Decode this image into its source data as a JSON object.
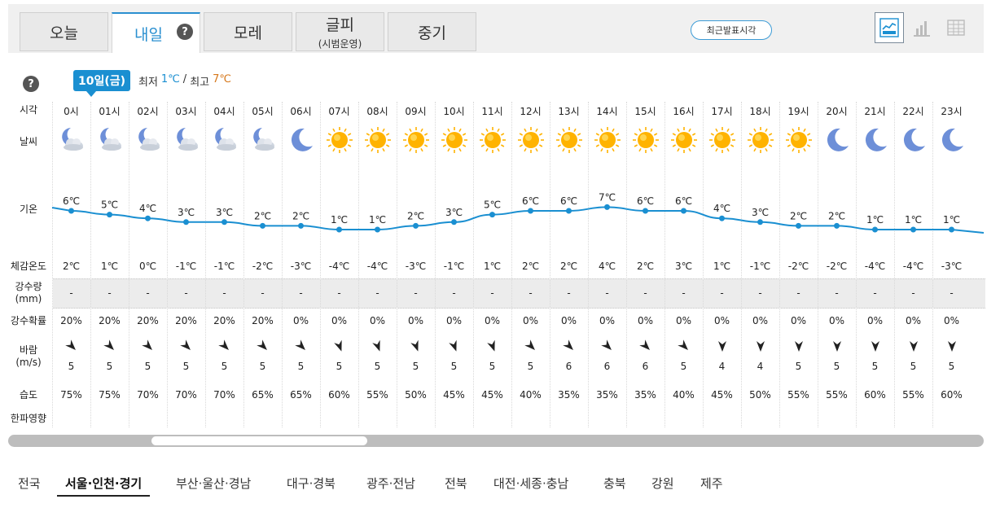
{
  "tabs": [
    {
      "label": "오늘",
      "sub": ""
    },
    {
      "label": "내일",
      "sub": ""
    },
    {
      "label": "모레",
      "sub": ""
    },
    {
      "label": "글피",
      "sub": "(시범운영)"
    },
    {
      "label": "중기",
      "sub": ""
    }
  ],
  "help_glyph": "?",
  "latest_button": "최근발표시각",
  "date_badge": "10일(금)",
  "min_label": "최저",
  "min_value": "1℃",
  "separator": "/",
  "max_label": "최고",
  "max_value": "7℃",
  "row_labels": {
    "time": "시각",
    "weather": "날씨",
    "temp": "기온",
    "feels": "체감온도",
    "precip_line1": "강수량",
    "precip_line2": "(mm)",
    "pop": "강수확률",
    "wind_line1": "바람",
    "wind_line2": "(m/s)",
    "humidity": "습도",
    "cold": "한파영향"
  },
  "hours": [
    {
      "time": "0시",
      "weather": "partly-cloudy-night",
      "temp": 6,
      "feels": "2℃",
      "precip": "-",
      "pop": "20%",
      "wind_dir": 135,
      "wind": "5",
      "humidity": "75%"
    },
    {
      "time": "01시",
      "weather": "partly-cloudy-night",
      "temp": 5,
      "feels": "1℃",
      "precip": "-",
      "pop": "20%",
      "wind_dir": 135,
      "wind": "5",
      "humidity": "75%"
    },
    {
      "time": "02시",
      "weather": "partly-cloudy-night",
      "temp": 4,
      "feels": "0℃",
      "precip": "-",
      "pop": "20%",
      "wind_dir": 135,
      "wind": "5",
      "humidity": "70%"
    },
    {
      "time": "03시",
      "weather": "partly-cloudy-night",
      "temp": 3,
      "feels": "-1℃",
      "precip": "-",
      "pop": "20%",
      "wind_dir": 135,
      "wind": "5",
      "humidity": "70%"
    },
    {
      "time": "04시",
      "weather": "partly-cloudy-night",
      "temp": 3,
      "feels": "-1℃",
      "precip": "-",
      "pop": "20%",
      "wind_dir": 135,
      "wind": "5",
      "humidity": "70%"
    },
    {
      "time": "05시",
      "weather": "partly-cloudy-night",
      "temp": 2,
      "feels": "-2℃",
      "precip": "-",
      "pop": "20%",
      "wind_dir": 135,
      "wind": "5",
      "humidity": "65%"
    },
    {
      "time": "06시",
      "weather": "clear-night",
      "temp": 2,
      "feels": "-3℃",
      "precip": "-",
      "pop": "0%",
      "wind_dir": 135,
      "wind": "5",
      "humidity": "65%"
    },
    {
      "time": "07시",
      "weather": "sunny",
      "temp": 1,
      "feels": "-4℃",
      "precip": "-",
      "pop": "0%",
      "wind_dir": 160,
      "wind": "5",
      "humidity": "60%"
    },
    {
      "time": "08시",
      "weather": "sunny",
      "temp": 1,
      "feels": "-4℃",
      "precip": "-",
      "pop": "0%",
      "wind_dir": 160,
      "wind": "5",
      "humidity": "55%"
    },
    {
      "time": "09시",
      "weather": "sunny",
      "temp": 2,
      "feels": "-3℃",
      "precip": "-",
      "pop": "0%",
      "wind_dir": 160,
      "wind": "5",
      "humidity": "50%"
    },
    {
      "time": "10시",
      "weather": "sunny",
      "temp": 3,
      "feels": "-1℃",
      "precip": "-",
      "pop": "0%",
      "wind_dir": 160,
      "wind": "5",
      "humidity": "45%"
    },
    {
      "time": "11시",
      "weather": "sunny",
      "temp": 5,
      "feels": "1℃",
      "precip": "-",
      "pop": "0%",
      "wind_dir": 160,
      "wind": "5",
      "humidity": "45%"
    },
    {
      "time": "12시",
      "weather": "sunny",
      "temp": 6,
      "feels": "2℃",
      "precip": "-",
      "pop": "0%",
      "wind_dir": 135,
      "wind": "5",
      "humidity": "40%"
    },
    {
      "time": "13시",
      "weather": "sunny",
      "temp": 6,
      "feels": "2℃",
      "precip": "-",
      "pop": "0%",
      "wind_dir": 135,
      "wind": "6",
      "humidity": "35%"
    },
    {
      "time": "14시",
      "weather": "sunny",
      "temp": 7,
      "feels": "4℃",
      "precip": "-",
      "pop": "0%",
      "wind_dir": 135,
      "wind": "6",
      "humidity": "35%"
    },
    {
      "time": "15시",
      "weather": "sunny",
      "temp": 6,
      "feels": "2℃",
      "precip": "-",
      "pop": "0%",
      "wind_dir": 135,
      "wind": "6",
      "humidity": "35%"
    },
    {
      "time": "16시",
      "weather": "sunny",
      "temp": 6,
      "feels": "3℃",
      "precip": "-",
      "pop": "0%",
      "wind_dir": 135,
      "wind": "5",
      "humidity": "40%"
    },
    {
      "time": "17시",
      "weather": "sunny",
      "temp": 4,
      "feels": "1℃",
      "precip": "-",
      "pop": "0%",
      "wind_dir": 180,
      "wind": "4",
      "humidity": "45%"
    },
    {
      "time": "18시",
      "weather": "sunny",
      "temp": 3,
      "feels": "-1℃",
      "precip": "-",
      "pop": "0%",
      "wind_dir": 180,
      "wind": "4",
      "humidity": "50%"
    },
    {
      "time": "19시",
      "weather": "sunny",
      "temp": 2,
      "feels": "-2℃",
      "precip": "-",
      "pop": "0%",
      "wind_dir": 180,
      "wind": "5",
      "humidity": "55%"
    },
    {
      "time": "20시",
      "weather": "clear-night",
      "temp": 2,
      "feels": "-2℃",
      "precip": "-",
      "pop": "0%",
      "wind_dir": 180,
      "wind": "5",
      "humidity": "55%"
    },
    {
      "time": "21시",
      "weather": "clear-night",
      "temp": 1,
      "feels": "-4℃",
      "precip": "-",
      "pop": "0%",
      "wind_dir": 180,
      "wind": "5",
      "humidity": "60%"
    },
    {
      "time": "22시",
      "weather": "clear-night",
      "temp": 1,
      "feels": "-4℃",
      "precip": "-",
      "pop": "0%",
      "wind_dir": 180,
      "wind": "5",
      "humidity": "55%"
    },
    {
      "time": "23시",
      "weather": "clear-night",
      "temp": 1,
      "feels": "-3℃",
      "precip": "-",
      "pop": "0%",
      "wind_dir": 180,
      "wind": "5",
      "humidity": "60%"
    }
  ],
  "temp_unit": "℃",
  "regions": [
    "전국",
    "서울·인천·경기",
    "부산·울산·경남",
    "대구·경북",
    "광주·전남",
    "전북",
    "대전·세종·충남",
    "충북",
    "강원",
    "제주"
  ],
  "active_region": 1,
  "colors": {
    "accent": "#1a8fd1",
    "temp_line": "#1a8fd1",
    "sun": "#ffb300",
    "moon": "#6d8fd8",
    "max_temp": "#d6771a"
  }
}
